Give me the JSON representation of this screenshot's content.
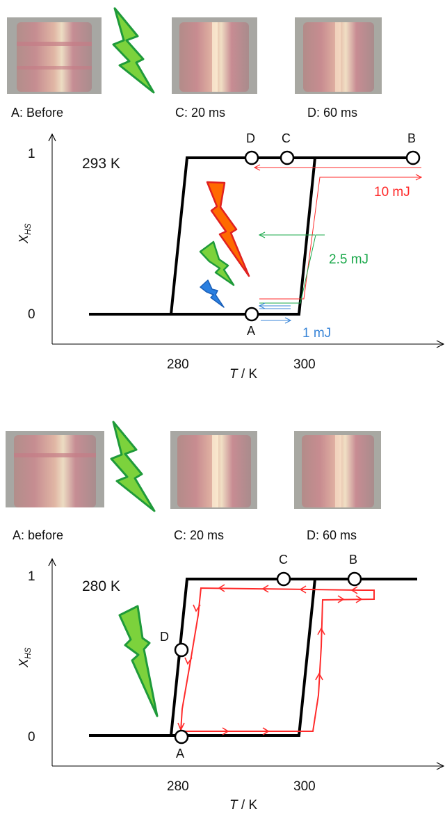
{
  "colors": {
    "curve": "#000000",
    "red_pulse": "#ff2a2a",
    "green_pulse": "#1aa84a",
    "blue_pulse": "#3a86d8",
    "bolt_red": "#ff6a00",
    "bolt_red_stroke": "#e02020",
    "bolt_green": "#7cd23c",
    "bolt_green_stroke": "#1f9a3a",
    "bolt_blue": "#2a7fe0"
  },
  "top": {
    "photo_labels": [
      "A: Before",
      "C: 20 ms",
      "D: 60 ms"
    ],
    "temperature_label": "293 K",
    "y_ticks": [
      "1",
      "0"
    ],
    "x_ticks": [
      "280",
      "300"
    ],
    "y_axis_label_main": "X",
    "y_axis_label_sub": "HS",
    "x_axis_label_var": "T",
    "x_axis_label_unit": " / K",
    "point_labels": [
      "A",
      "B",
      "C",
      "D"
    ],
    "energy_labels": [
      "10 mJ",
      "2.5 mJ",
      "1 mJ"
    ],
    "icons": [
      "lightning-bolt-icon"
    ]
  },
  "bottom": {
    "photo_labels": [
      "A: before",
      "C: 20 ms",
      "D: 60 ms"
    ],
    "temperature_label": "280 K",
    "y_ticks": [
      "1",
      "0"
    ],
    "x_ticks": [
      "280",
      "300"
    ],
    "y_axis_label_main": "X",
    "y_axis_label_sub": "HS",
    "x_axis_label_var": "T",
    "x_axis_label_unit": " / K",
    "point_labels": [
      "A",
      "B",
      "C",
      "D"
    ],
    "icons": [
      "lightning-bolt-icon"
    ]
  }
}
